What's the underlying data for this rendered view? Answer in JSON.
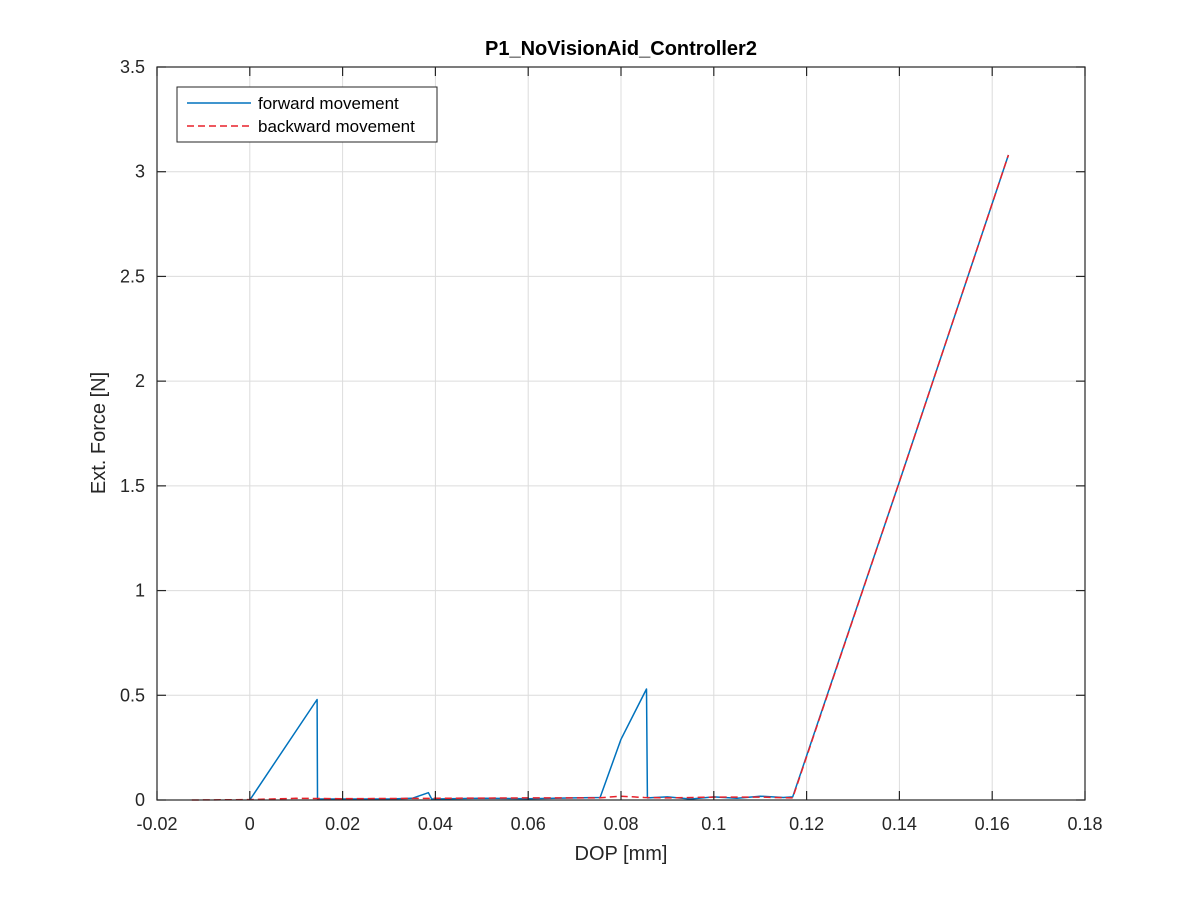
{
  "chart_data": {
    "type": "line",
    "title": "P1_NoVisionAid_Controller2",
    "xlabel": "DOP [mm]",
    "ylabel": "Ext. Force [N]",
    "xlim": [
      -0.02,
      0.18
    ],
    "ylim": [
      0,
      3.5
    ],
    "xticks": [
      -0.02,
      0,
      0.02,
      0.04,
      0.06,
      0.08,
      0.1,
      0.12,
      0.14,
      0.16,
      0.18
    ],
    "xtick_labels": [
      "-0.02",
      "0",
      "0.02",
      "0.04",
      "0.06",
      "0.08",
      "0.1",
      "0.12",
      "0.14",
      "0.16",
      "0.18"
    ],
    "yticks": [
      0,
      0.5,
      1,
      1.5,
      2,
      2.5,
      3,
      3.5
    ],
    "ytick_labels": [
      "0",
      "0.5",
      "1",
      "1.5",
      "2",
      "2.5",
      "3",
      "3.5"
    ],
    "grid": true,
    "legend_position": "top-left",
    "series": [
      {
        "name": "forward movement",
        "color": "#0072BD",
        "style": "solid",
        "points": [
          [
            0,
            0
          ],
          [
            0.0145,
            0.48
          ],
          [
            0.0146,
            0.005
          ],
          [
            0.02,
            0.005
          ],
          [
            0.03,
            0.005
          ],
          [
            0.035,
            0.008
          ],
          [
            0.0385,
            0.035
          ],
          [
            0.0392,
            0.005
          ],
          [
            0.05,
            0.008
          ],
          [
            0.06,
            0.006
          ],
          [
            0.07,
            0.01
          ],
          [
            0.0755,
            0.012
          ],
          [
            0.08,
            0.29
          ],
          [
            0.0855,
            0.53
          ],
          [
            0.0857,
            0.01
          ],
          [
            0.09,
            0.015
          ],
          [
            0.095,
            0.005
          ],
          [
            0.1,
            0.015
          ],
          [
            0.105,
            0.008
          ],
          [
            0.11,
            0.018
          ],
          [
            0.115,
            0.012
          ],
          [
            0.117,
            0.015
          ],
          [
            0.14,
            1.52
          ],
          [
            0.1635,
            3.08
          ]
        ]
      },
      {
        "name": "backward movement",
        "color": "#E8212A",
        "style": "dashed",
        "points": [
          [
            -0.0125,
            0
          ],
          [
            0,
            0.002
          ],
          [
            0.01,
            0.008
          ],
          [
            0.02,
            0.006
          ],
          [
            0.04,
            0.008
          ],
          [
            0.06,
            0.01
          ],
          [
            0.075,
            0.01
          ],
          [
            0.08,
            0.018
          ],
          [
            0.085,
            0.012
          ],
          [
            0.09,
            0.01
          ],
          [
            0.1,
            0.014
          ],
          [
            0.11,
            0.014
          ],
          [
            0.117,
            0.01
          ],
          [
            0.14,
            1.52
          ],
          [
            0.1635,
            3.08
          ]
        ]
      }
    ]
  }
}
